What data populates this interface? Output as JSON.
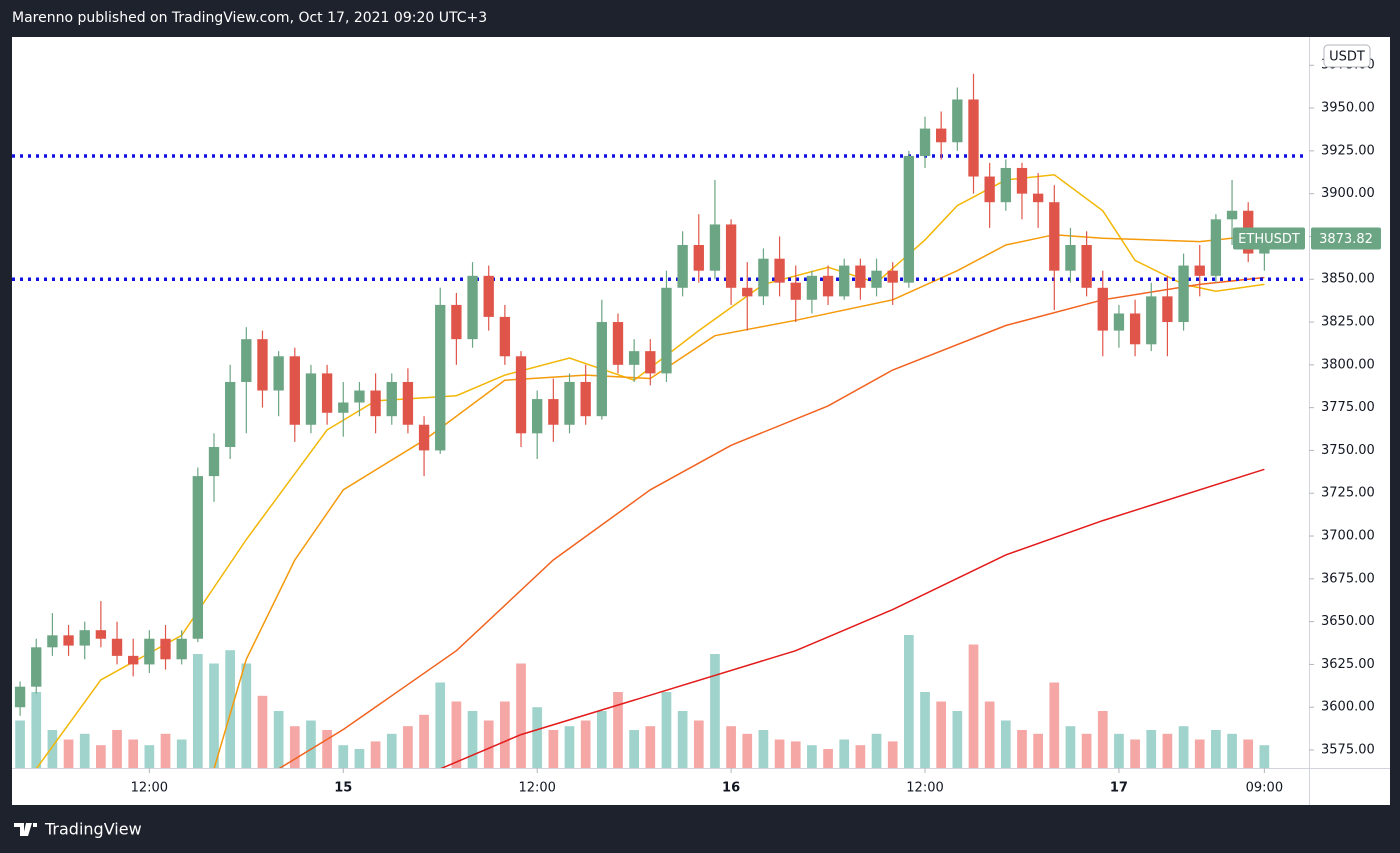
{
  "header": {
    "title": "Marenno published on TradingView.com, Oct 17, 2021 09:20 UTC+3"
  },
  "footer": {
    "brand": "TradingView"
  },
  "chart_data": {
    "type": "candlestick",
    "symbol": "ETHUSDT",
    "currency": "USDT",
    "up_color": "#6ba583",
    "down_color": "#e0554a",
    "volume_up_color": "#9fd3cc",
    "volume_down_color": "#f4a7a5",
    "x": [
      -20,
      -19,
      -18,
      -17,
      -16,
      -15,
      -14,
      -13,
      -12,
      -11,
      -10,
      -9,
      -8,
      -7,
      -6,
      -5,
      -4,
      -3,
      -2,
      -1,
      0,
      1,
      2,
      3,
      4,
      5,
      6,
      7,
      8,
      9,
      10,
      11,
      12,
      13,
      14,
      15,
      16,
      17,
      18,
      19,
      20,
      21,
      22,
      23,
      24,
      25,
      26,
      27,
      28,
      29,
      30,
      31,
      32,
      33,
      34,
      35,
      36,
      37,
      38,
      39,
      40,
      41,
      42,
      43,
      44,
      45,
      46,
      47,
      48,
      49,
      50,
      51,
      52,
      53,
      54,
      55,
      56,
      57
    ],
    "open": [
      3600,
      3612,
      3635,
      3642,
      3636,
      3645,
      3640,
      3630,
      3625,
      3640,
      3628,
      3640,
      3735,
      3752,
      3790,
      3815,
      3785,
      3805,
      3765,
      3795,
      3772,
      3778,
      3785,
      3770,
      3790,
      3765,
      3750,
      3835,
      3815,
      3852,
      3828,
      3805,
      3760,
      3780,
      3765,
      3790,
      3770,
      3825,
      3800,
      3808,
      3795,
      3845,
      3870,
      3855,
      3882,
      3845,
      3840,
      3862,
      3848,
      3838,
      3852,
      3840,
      3858,
      3845,
      3855,
      3848,
      3922,
      3938,
      3930,
      3955,
      3910,
      3895,
      3915,
      3900,
      3895,
      3855,
      3870,
      3845,
      3820,
      3830,
      3812,
      3840,
      3825,
      3858,
      3852,
      3885,
      3890,
      3865
    ],
    "high": [
      3615,
      3640,
      3655,
      3648,
      3650,
      3662,
      3650,
      3640,
      3645,
      3648,
      3645,
      3740,
      3760,
      3800,
      3822,
      3820,
      3808,
      3810,
      3800,
      3800,
      3790,
      3790,
      3795,
      3795,
      3798,
      3770,
      3845,
      3842,
      3860,
      3858,
      3835,
      3808,
      3785,
      3792,
      3795,
      3800,
      3838,
      3830,
      3815,
      3815,
      3855,
      3878,
      3888,
      3908,
      3885,
      3860,
      3868,
      3875,
      3858,
      3855,
      3858,
      3862,
      3862,
      3862,
      3860,
      3925,
      3945,
      3948,
      3962,
      3970,
      3918,
      3920,
      3918,
      3912,
      3905,
      3880,
      3878,
      3855,
      3835,
      3838,
      3848,
      3852,
      3865,
      3870,
      3888,
      3908,
      3895,
      3878
    ],
    "low": [
      3595,
      3608,
      3630,
      3630,
      3628,
      3635,
      3625,
      3618,
      3620,
      3622,
      3625,
      3638,
      3720,
      3745,
      3760,
      3775,
      3770,
      3755,
      3760,
      3765,
      3758,
      3770,
      3760,
      3765,
      3760,
      3735,
      3748,
      3800,
      3810,
      3820,
      3800,
      3752,
      3745,
      3755,
      3760,
      3765,
      3768,
      3795,
      3790,
      3788,
      3790,
      3840,
      3848,
      3850,
      3835,
      3820,
      3835,
      3840,
      3825,
      3830,
      3835,
      3838,
      3838,
      3840,
      3835,
      3845,
      3915,
      3920,
      3925,
      3900,
      3880,
      3890,
      3885,
      3880,
      3832,
      3848,
      3840,
      3805,
      3810,
      3805,
      3808,
      3805,
      3820,
      3840,
      3848,
      3870,
      3860,
      3855
    ],
    "close": [
      3612,
      3635,
      3642,
      3636,
      3645,
      3640,
      3630,
      3625,
      3640,
      3628,
      3640,
      3735,
      3752,
      3790,
      3815,
      3785,
      3805,
      3765,
      3795,
      3772,
      3778,
      3785,
      3770,
      3790,
      3765,
      3750,
      3835,
      3815,
      3852,
      3828,
      3805,
      3760,
      3780,
      3765,
      3790,
      3770,
      3825,
      3800,
      3808,
      3795,
      3845,
      3870,
      3855,
      3882,
      3845,
      3840,
      3862,
      3848,
      3838,
      3852,
      3840,
      3858,
      3845,
      3855,
      3848,
      3922,
      3938,
      3930,
      3955,
      3910,
      3895,
      3915,
      3900,
      3895,
      3855,
      3870,
      3845,
      3820,
      3830,
      3812,
      3840,
      3825,
      3858,
      3852,
      3885,
      3890,
      3865,
      3873.82
    ],
    "volume": [
      25,
      40,
      20,
      15,
      18,
      12,
      20,
      15,
      12,
      18,
      15,
      60,
      55,
      62,
      55,
      38,
      30,
      22,
      25,
      20,
      12,
      10,
      14,
      18,
      22,
      28,
      45,
      35,
      30,
      25,
      35,
      55,
      32,
      20,
      22,
      25,
      30,
      40,
      20,
      22,
      40,
      30,
      25,
      60,
      22,
      18,
      20,
      15,
      14,
      12,
      10,
      15,
      12,
      18,
      14,
      70,
      40,
      35,
      30,
      65,
      35,
      25,
      20,
      18,
      45,
      22,
      18,
      30,
      18,
      15,
      20,
      18,
      22,
      15,
      20,
      18,
      15,
      12
    ],
    "moving_averages": [
      {
        "color": "#f2b705",
        "x": [
          -19,
          -15,
          -10,
          -6,
          -1,
          2,
          7,
          10,
          14,
          18,
          22,
          26,
          30,
          33,
          36,
          38,
          41,
          44,
          47,
          49,
          52,
          54,
          57
        ],
        "values": [
          3564,
          3616,
          3642,
          3698,
          3762,
          3779,
          3782,
          3794,
          3804,
          3791,
          3820,
          3847,
          3857,
          3848,
          3873,
          3893,
          3908,
          3911,
          3890,
          3861,
          3847,
          3843,
          3847
        ]
      },
      {
        "color": "#f59a0b",
        "x": [
          -8,
          -6,
          -3,
          0,
          5,
          10,
          15,
          19,
          23,
          28,
          34,
          38,
          41,
          44,
          47,
          53,
          57
        ],
        "values": [
          3564,
          3628,
          3686,
          3727,
          3756,
          3791,
          3794,
          3792,
          3817,
          3826,
          3838,
          3855,
          3870,
          3876,
          3874,
          3872,
          3876
        ]
      },
      {
        "color": "#f2621f",
        "x": [
          -4,
          0,
          7,
          13,
          19,
          24,
          30,
          34,
          41,
          47,
          53,
          57
        ],
        "values": [
          3564,
          3587,
          3633,
          3686,
          3727,
          3753,
          3776,
          3797,
          3823,
          3838,
          3847,
          3851
        ]
      },
      {
        "color": "#e31a1a",
        "x": [
          6,
          11,
          19,
          28,
          34,
          41,
          47,
          57
        ],
        "values": [
          3564,
          3584,
          3607,
          3633,
          3657,
          3689,
          3709,
          3739
        ]
      }
    ],
    "hlines": [
      {
        "value": 3922,
        "color": "#1010e0"
      },
      {
        "value": 3850,
        "color": "#1010e0"
      }
    ],
    "xlim": [
      -20.5,
      59.7
    ],
    "xticks": [
      {
        "value": -12,
        "label": "12:00"
      },
      {
        "value": 0,
        "label": "15"
      },
      {
        "value": 12,
        "label": "12:00"
      },
      {
        "value": 24,
        "label": "16"
      },
      {
        "value": 36,
        "label": "12:00"
      },
      {
        "value": 48,
        "label": "17"
      },
      {
        "value": 57,
        "label": "09:00"
      }
    ],
    "ylim": [
      3564.5,
      3991.5
    ],
    "yticks": [
      {
        "value": 3575,
        "label": "3575.00"
      },
      {
        "value": 3600,
        "label": "3600.00"
      },
      {
        "value": 3625,
        "label": "3625.00"
      },
      {
        "value": 3650,
        "label": "3650.00"
      },
      {
        "value": 3675,
        "label": "3675.00"
      },
      {
        "value": 3700,
        "label": "3700.00"
      },
      {
        "value": 3725,
        "label": "3725.00"
      },
      {
        "value": 3750,
        "label": "3750.00"
      },
      {
        "value": 3775,
        "label": "3775.00"
      },
      {
        "value": 3800,
        "label": "3800.00"
      },
      {
        "value": 3825,
        "label": "3825.00"
      },
      {
        "value": 3850,
        "label": "3850.00"
      },
      {
        "value": 3875,
        "label": "3875.00"
      },
      {
        "value": 3900,
        "label": "3900.00"
      },
      {
        "value": 3925,
        "label": "3925.00"
      },
      {
        "value": 3950,
        "label": "3950.00"
      },
      {
        "value": 3975,
        "label": "3975.00"
      }
    ],
    "y2lim": [
      0,
      100
    ]
  }
}
